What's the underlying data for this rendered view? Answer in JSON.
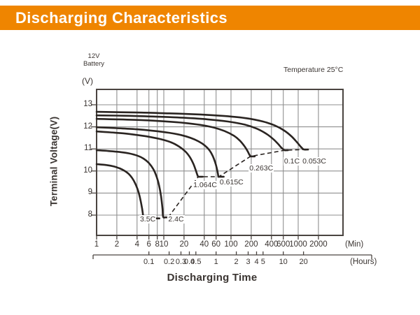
{
  "header": {
    "title": "Discharging Characteristics",
    "bg_color": "#ef8500",
    "text_color": "#ffffff"
  },
  "annotations": {
    "battery_line1": "12V",
    "battery_line2": "Battery",
    "temperature": "Temperature 25°C",
    "v_unit": "(V)",
    "min_unit": "(Min)",
    "hours_unit": "(Hours)"
  },
  "axis_titles": {
    "x": "Discharging Time",
    "y": "Terminal Voltage(V)"
  },
  "colors": {
    "curve": "#2a2421",
    "grid": "#8f8f8f",
    "border": "#4a4440",
    "text": "#3a3431"
  },
  "chart_data": {
    "type": "line",
    "title": "Discharging Characteristics",
    "xlabel": "Discharging Time",
    "ylabel": "Terminal Voltage(V)",
    "x_scale": "log",
    "x_unit_primary": "minutes",
    "x_ticks_minutes": [
      1,
      2,
      4,
      6,
      8,
      10,
      20,
      40,
      60,
      100,
      200,
      400,
      600,
      1000,
      2000
    ],
    "x_ticks_hours": [
      0.1,
      0.2,
      0.3,
      0.4,
      0.5,
      1,
      2,
      3,
      4,
      5,
      10,
      20
    ],
    "y_ticks": [
      13,
      12,
      11,
      10,
      9,
      8
    ],
    "ylim": [
      7.1,
      13.7
    ],
    "xlim_minutes": [
      1,
      4640
    ],
    "grid": true,
    "series": [
      {
        "name": "3.5C",
        "points": [
          [
            1,
            10.31
          ],
          [
            1.4,
            10.27
          ],
          [
            1.8,
            10.21
          ],
          [
            2.2,
            10.12
          ],
          [
            2.6,
            10.01
          ],
          [
            3,
            9.87
          ],
          [
            3.4,
            9.67
          ],
          [
            3.8,
            9.4
          ],
          [
            4.2,
            9.05
          ],
          [
            4.5,
            8.68
          ],
          [
            4.75,
            8.3
          ],
          [
            4.92,
            7.98
          ],
          [
            5.0,
            7.85
          ],
          [
            6.5,
            7.85
          ],
          [
            8.6,
            7.85
          ]
        ]
      },
      {
        "name": "2.4C",
        "points": [
          [
            1,
            10.94
          ],
          [
            1.6,
            10.9
          ],
          [
            2.2,
            10.86
          ],
          [
            3,
            10.8
          ],
          [
            4,
            10.7
          ],
          [
            5,
            10.56
          ],
          [
            6,
            10.36
          ],
          [
            7,
            10.08
          ],
          [
            7.8,
            9.75
          ],
          [
            8.5,
            9.35
          ],
          [
            9.1,
            8.85
          ],
          [
            9.55,
            8.3
          ],
          [
            9.78,
            7.92
          ],
          [
            10.6,
            7.9
          ],
          [
            11.6,
            7.9
          ]
        ]
      },
      {
        "name": "1.064C",
        "points": [
          [
            1,
            11.79
          ],
          [
            1.6,
            11.75
          ],
          [
            2.6,
            11.7
          ],
          [
            4,
            11.63
          ],
          [
            6,
            11.55
          ],
          [
            9,
            11.44
          ],
          [
            13,
            11.29
          ],
          [
            17,
            11.1
          ],
          [
            21,
            10.88
          ],
          [
            24.5,
            10.62
          ],
          [
            27.5,
            10.33
          ],
          [
            29.8,
            10.05
          ],
          [
            31.3,
            9.85
          ],
          [
            32.2,
            9.76
          ],
          [
            32.6,
            9.74
          ],
          [
            38,
            9.74
          ]
        ]
      },
      {
        "name": "0.615C",
        "points": [
          [
            1,
            11.98
          ],
          [
            2,
            11.94
          ],
          [
            4,
            11.89
          ],
          [
            7,
            11.82
          ],
          [
            12,
            11.73
          ],
          [
            18,
            11.63
          ],
          [
            25,
            11.5
          ],
          [
            33,
            11.34
          ],
          [
            41,
            11.15
          ],
          [
            48,
            10.93
          ],
          [
            53.5,
            10.68
          ],
          [
            58,
            10.4
          ],
          [
            61.5,
            10.12
          ],
          [
            63.8,
            9.88
          ],
          [
            64.9,
            9.75
          ],
          [
            66,
            9.74
          ],
          [
            78,
            9.74
          ]
        ]
      },
      {
        "name": "0.263C",
        "points": [
          [
            1,
            12.36
          ],
          [
            2,
            12.34
          ],
          [
            5,
            12.3
          ],
          [
            10,
            12.25
          ],
          [
            20,
            12.18
          ],
          [
            35,
            12.09
          ],
          [
            55,
            11.97
          ],
          [
            80,
            11.81
          ],
          [
            110,
            11.6
          ],
          [
            135,
            11.38
          ],
          [
            158,
            11.13
          ],
          [
            175,
            10.92
          ],
          [
            186,
            10.76
          ],
          [
            193,
            10.68
          ],
          [
            195,
            10.66
          ],
          [
            225,
            10.66
          ]
        ]
      },
      {
        "name": "0.1C",
        "points": [
          [
            1,
            12.52
          ],
          [
            3,
            12.5
          ],
          [
            8,
            12.46
          ],
          [
            20,
            12.41
          ],
          [
            45,
            12.34
          ],
          [
            90,
            12.24
          ],
          [
            160,
            12.1
          ],
          [
            240,
            11.92
          ],
          [
            330,
            11.7
          ],
          [
            420,
            11.46
          ],
          [
            500,
            11.23
          ],
          [
            560,
            11.06
          ],
          [
            605,
            10.97
          ],
          [
            630,
            10.94
          ],
          [
            700,
            10.94
          ]
        ]
      },
      {
        "name": "0.053C",
        "points": [
          [
            1,
            12.68
          ],
          [
            4,
            12.65
          ],
          [
            12,
            12.61
          ],
          [
            35,
            12.56
          ],
          [
            80,
            12.49
          ],
          [
            170,
            12.39
          ],
          [
            300,
            12.24
          ],
          [
            450,
            12.06
          ],
          [
            620,
            11.83
          ],
          [
            800,
            11.56
          ],
          [
            960,
            11.3
          ],
          [
            1090,
            11.1
          ],
          [
            1185,
            10.99
          ],
          [
            1245,
            10.97
          ],
          [
            1400,
            10.97
          ]
        ]
      }
    ],
    "cutoff_line": {
      "style": "dashed",
      "points": [
        [
          11.6,
          7.9
        ],
        [
          32.6,
          9.74
        ],
        [
          66,
          9.74
        ],
        [
          195,
          10.66
        ],
        [
          630,
          10.94
        ],
        [
          1245,
          10.97
        ]
      ]
    },
    "series_labels": [
      {
        "text": "3.5C",
        "t": 5.77,
        "v": 7.82
      },
      {
        "text": "2.4C",
        "t": 15.2,
        "v": 7.82
      },
      {
        "text": "1.064C",
        "t": 41.2,
        "v": 9.36
      },
      {
        "text": "0.615C",
        "t": 102,
        "v": 9.49
      },
      {
        "text": "0.263C",
        "t": 282,
        "v": 10.13
      },
      {
        "text": "0.1C",
        "t": 806,
        "v": 10.44
      },
      {
        "text": "0.053C",
        "t": 1737,
        "v": 10.44
      }
    ]
  }
}
